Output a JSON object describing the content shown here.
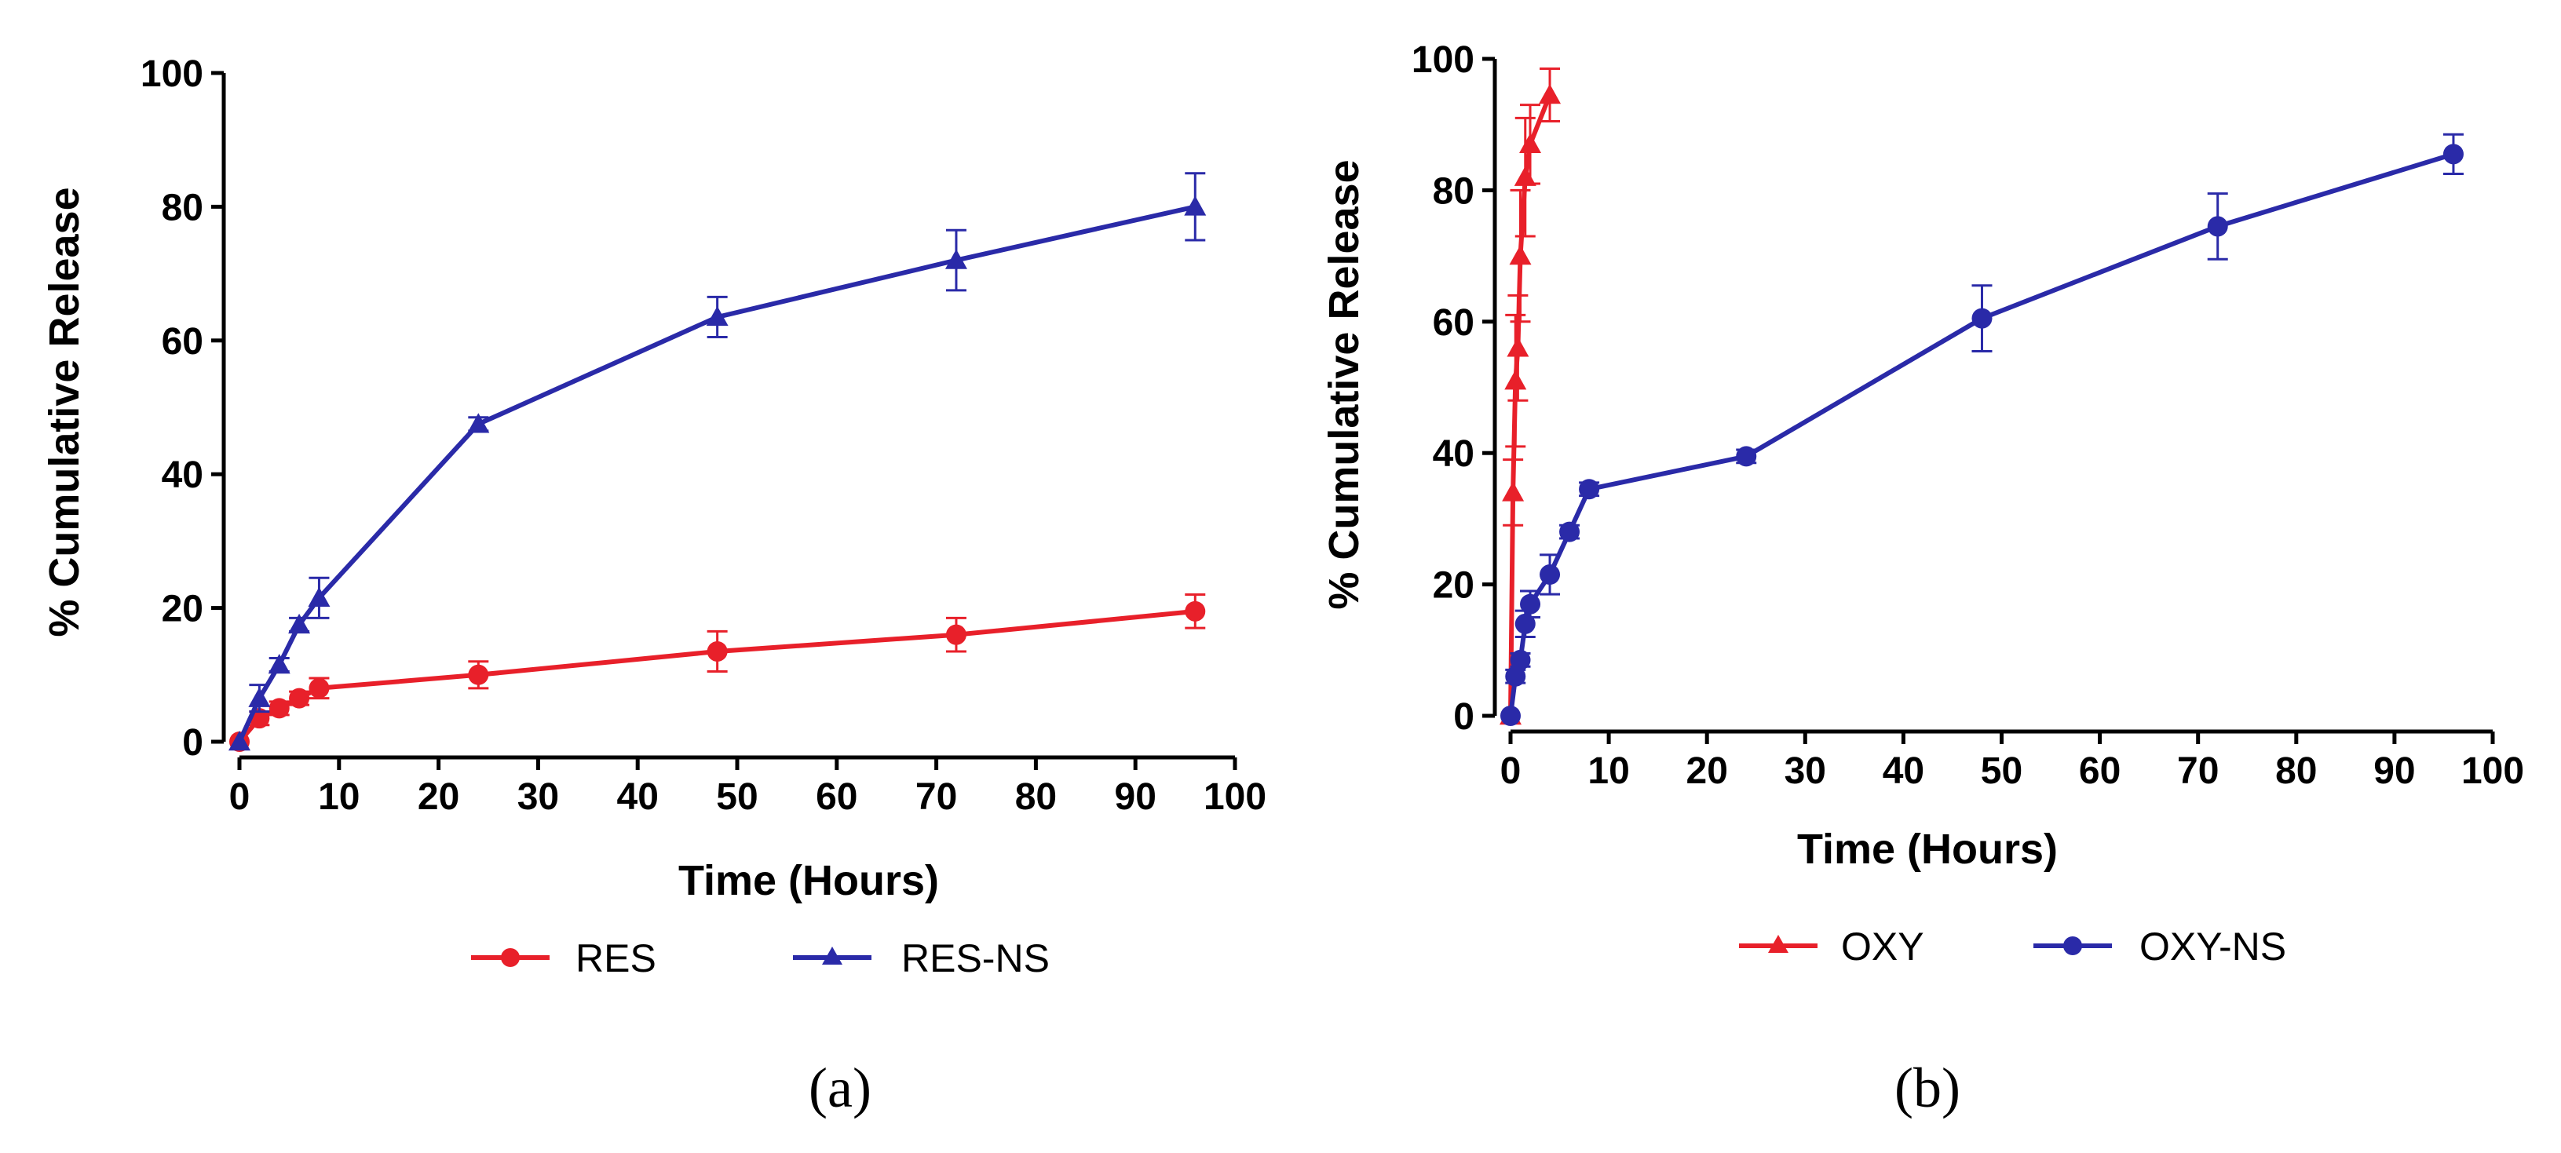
{
  "chart_data": [
    {
      "type": "line",
      "panel_label": "(a)",
      "xlabel": "Time (Hours)",
      "ylabel": "% Cumulative Release",
      "xlim": [
        0,
        100
      ],
      "ylim": [
        0,
        100
      ],
      "xticks": [
        0,
        10,
        20,
        30,
        40,
        50,
        60,
        70,
        80,
        90,
        100
      ],
      "yticks": [
        0,
        20,
        40,
        60,
        80,
        100
      ],
      "legend_position": "bottom",
      "series": [
        {
          "name": "RES",
          "color": "#e8202a",
          "marker": "circle",
          "x": [
            0,
            2,
            4,
            6,
            8,
            24,
            48,
            72,
            96
          ],
          "y": [
            0,
            3.5,
            5,
            6.5,
            8,
            10,
            13.5,
            16,
            19.5
          ],
          "err": [
            0,
            1,
            1,
            1,
            1.5,
            2,
            3,
            2.5,
            2.5
          ]
        },
        {
          "name": "RES-NS",
          "color": "#2a2aa8",
          "marker": "triangle",
          "x": [
            0,
            2,
            4,
            6,
            8,
            24,
            48,
            72,
            96
          ],
          "y": [
            0,
            6.5,
            11.5,
            17.5,
            21.5,
            47.5,
            63.5,
            72,
            80
          ],
          "err": [
            0,
            2,
            1,
            1,
            3,
            1,
            3,
            4.5,
            5
          ]
        }
      ]
    },
    {
      "type": "line",
      "panel_label": "(b)",
      "xlabel": "Time (Hours)",
      "ylabel": "% Cumulative Release",
      "xlim": [
        0,
        100
      ],
      "ylim": [
        0,
        100
      ],
      "xticks": [
        0,
        10,
        20,
        30,
        40,
        50,
        60,
        70,
        80,
        90,
        100
      ],
      "yticks": [
        0,
        20,
        40,
        60,
        80,
        100
      ],
      "legend_position": "bottom",
      "series": [
        {
          "name": "OXY",
          "color": "#e8202a",
          "marker": "triangle",
          "x": [
            0,
            0.25,
            0.5,
            0.75,
            1,
            1.5,
            2,
            4
          ],
          "y": [
            0,
            34,
            51,
            56,
            70,
            82,
            87,
            94.5
          ],
          "err": [
            0,
            5,
            10,
            8,
            10,
            9,
            6,
            4
          ]
        },
        {
          "name": "OXY-NS",
          "color": "#2a2aa8",
          "marker": "circle",
          "x": [
            0,
            0.5,
            1,
            1.5,
            2,
            4,
            6,
            8,
            24,
            48,
            72,
            96
          ],
          "y": [
            0,
            6,
            8.5,
            14,
            17,
            21.5,
            28,
            34.5,
            39.5,
            60.5,
            74.5,
            85.5
          ],
          "err": [
            0,
            1,
            1,
            2,
            2,
            3,
            1,
            1,
            1,
            5,
            5,
            3
          ]
        }
      ]
    }
  ]
}
